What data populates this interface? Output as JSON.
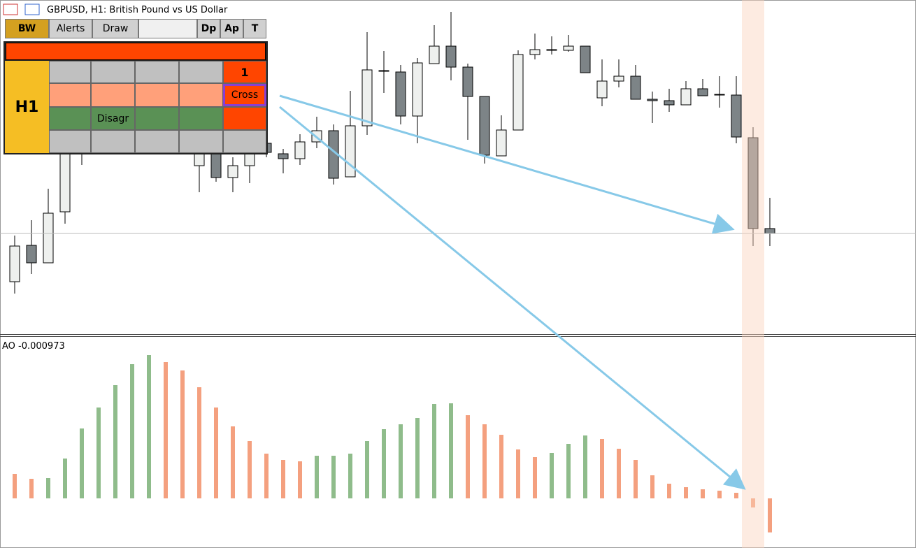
{
  "header": {
    "title": "GBPUSD, H1:  British Pound vs US Dollar"
  },
  "toolbar": {
    "buttons": [
      "BW",
      "Alerts",
      "Draw",
      "Dp",
      "Ap",
      "T"
    ]
  },
  "panel": {
    "timeframe": "H1",
    "count": "1",
    "signal": "Cross",
    "status": "Disagr"
  },
  "indicator": {
    "label": "AO -0.000973"
  },
  "chart_data": [
    {
      "type": "candlestick",
      "ylim": [
        0,
        478
      ],
      "up_color": "#eef0ee",
      "down_color": "#7d8487",
      "open": [
        75,
        127,
        102,
        175,
        273,
        278,
        318,
        348,
        373,
        363,
        328,
        241,
        268,
        224,
        241,
        273,
        258,
        251,
        275,
        291,
        225,
        298,
        377,
        375,
        312,
        387,
        412,
        382,
        340,
        255,
        292,
        400,
        407,
        406,
        412,
        338,
        362,
        369,
        336,
        334,
        328,
        351,
        343,
        342,
        281,
        151
      ],
      "high": [
        141,
        163,
        208,
        263,
        278,
        328,
        358,
        378,
        383,
        368,
        338,
        288,
        278,
        253,
        278,
        283,
        265,
        286,
        311,
        300,
        348,
        432,
        405,
        385,
        395,
        442,
        461,
        387,
        340,
        313,
        406,
        430,
        426,
        428,
        412,
        393,
        393,
        385,
        347,
        351,
        362,
        365,
        369,
        369,
        296,
        195
      ],
      "low": [
        58,
        86,
        102,
        158,
        242,
        268,
        308,
        338,
        348,
        318,
        278,
        203,
        218,
        203,
        216,
        253,
        230,
        242,
        266,
        214,
        225,
        285,
        345,
        300,
        273,
        387,
        363,
        278,
        244,
        255,
        292,
        393,
        400,
        404,
        374,
        326,
        353,
        336,
        302,
        318,
        328,
        341,
        324,
        273,
        126,
        126
      ],
      "close": [
        126,
        102,
        173,
        258,
        263,
        318,
        348,
        368,
        363,
        328,
        288,
        278,
        224,
        241,
        268,
        260,
        251,
        275,
        291,
        223,
        298,
        378,
        376,
        312,
        388,
        412,
        382,
        340,
        256,
        292,
        400,
        407,
        406,
        412,
        374,
        362,
        369,
        336,
        334,
        328,
        351,
        341,
        342,
        282,
        151,
        144
      ]
    },
    {
      "type": "bar",
      "ylim": [
        -0.00142,
        0.00456
      ],
      "up_color": "#8fbc8b",
      "down_color": "#f4a07f",
      "values": [
        0.0007,
        0.00056,
        0.00058,
        0.00114,
        0.002,
        0.0026,
        0.00324,
        0.00384,
        0.0041,
        0.0039,
        0.00366,
        0.00318,
        0.0026,
        0.00206,
        0.00164,
        0.00128,
        0.0011,
        0.00106,
        0.00122,
        0.00122,
        0.00128,
        0.00164,
        0.00198,
        0.00212,
        0.0023,
        0.0027,
        0.00272,
        0.00238,
        0.00212,
        0.00182,
        0.0014,
        0.00118,
        0.0013,
        0.00156,
        0.0018,
        0.0017,
        0.00142,
        0.0011,
        0.00066,
        0.00042,
        0.00032,
        0.00026,
        0.00022,
        0.00016,
        -0.00026,
        -0.000973
      ]
    }
  ]
}
